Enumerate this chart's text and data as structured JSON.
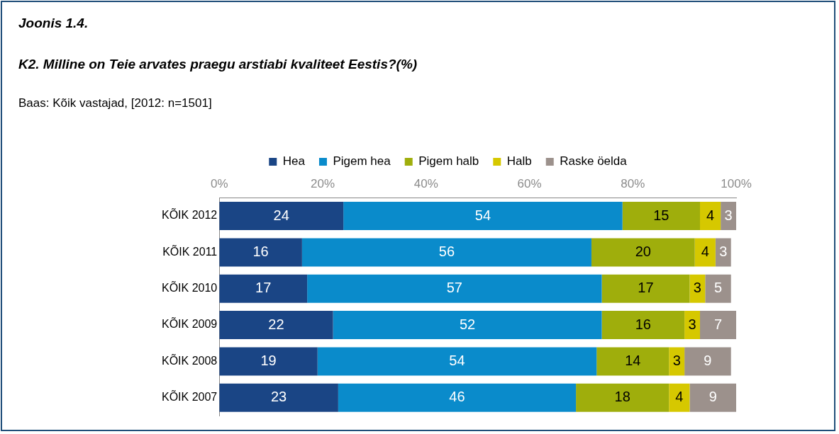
{
  "chart_data": {
    "type": "bar",
    "orientation": "horizontal",
    "stacked": true,
    "title": "Joonis 1.4.",
    "subtitle": "K2. Milline on Teie arvates praegu arstiabi kvaliteet Eestis?(%)",
    "annotations": [
      "Baas: Kõik vastajad, [2012: n=1501]"
    ],
    "categories": [
      "KÕIK 2012",
      "KÕIK 2011",
      "KÕIK 2010",
      "KÕIK 2009",
      "KÕIK 2008",
      "KÕIK 2007"
    ],
    "series": [
      {
        "name": "Hea",
        "color": "#1a4585",
        "values": [
          24,
          16,
          17,
          22,
          19,
          23
        ]
      },
      {
        "name": "Pigem hea",
        "color": "#0a8bcb",
        "values": [
          54,
          56,
          57,
          52,
          54,
          46
        ]
      },
      {
        "name": "Pigem halb",
        "color": "#9fae0c",
        "values": [
          15,
          20,
          17,
          16,
          14,
          18
        ]
      },
      {
        "name": "Halb",
        "color": "#d6c800",
        "values": [
          4,
          4,
          3,
          3,
          3,
          4
        ]
      },
      {
        "name": "Raske öelda",
        "color": "#9c918c",
        "values": [
          3,
          3,
          5,
          7,
          9,
          9
        ]
      }
    ],
    "xlim": [
      0,
      100
    ],
    "xticks": [
      {
        "value": 0,
        "label": "0%"
      },
      {
        "value": 20,
        "label": "20%"
      },
      {
        "value": 40,
        "label": "40%"
      },
      {
        "value": 60,
        "label": "60%"
      },
      {
        "value": 80,
        "label": "80%"
      },
      {
        "value": 100,
        "label": "100%"
      }
    ],
    "grid": false,
    "legend": "top",
    "data_labels": true
  }
}
